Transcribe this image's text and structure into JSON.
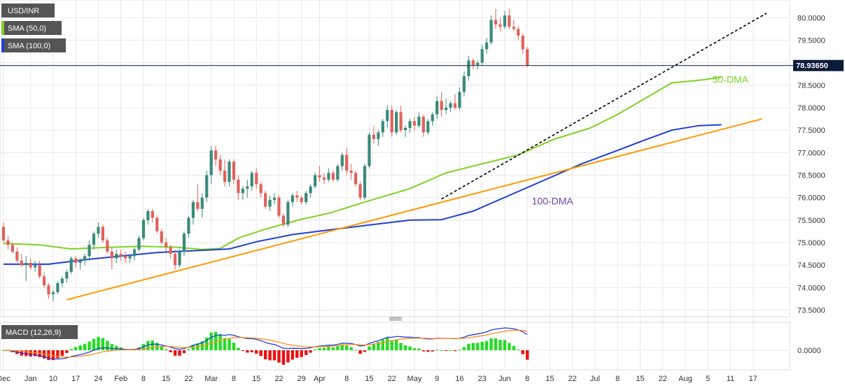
{
  "chart_data": [
    {
      "type": "candlestick",
      "title": "USD/INR",
      "legend": [
        {
          "name": "USD/INR",
          "color": "#555555",
          "swatch": "#555555"
        },
        {
          "name": "SMA (50,0)",
          "color": "#555555",
          "swatch": "#7ed321"
        },
        {
          "name": "SMA (100,0)",
          "color": "#555555",
          "swatch": "#1f3fd6"
        }
      ],
      "price_axis": {
        "ylim": [
          73.4,
          80.3
        ],
        "ticks": [
          "80.0000",
          "79.5000",
          "79.0000",
          "78.5000",
          "78.0000",
          "77.5000",
          "77.0000",
          "76.5000",
          "76.0000",
          "75.5000",
          "75.0000",
          "74.5000",
          "74.0000",
          "73.5000"
        ],
        "tick_values": [
          80.0,
          79.5,
          79.0,
          78.5,
          78.0,
          77.5,
          77.0,
          76.5,
          76.0,
          75.5,
          75.0,
          74.5,
          74.0,
          73.5
        ]
      },
      "current_price": {
        "value": 78.9365,
        "label": "78.93650"
      },
      "x_axis": {
        "tick_labels": [
          "Dec",
          "Jan",
          "10",
          "17",
          "24",
          "Feb",
          "8",
          "15",
          "22",
          "Mar",
          "8",
          "15",
          "22",
          "29",
          "Apr",
          "8",
          "15",
          "22",
          "May",
          "9",
          "16",
          "23",
          "Jun",
          "8",
          "15",
          "22",
          "Jul",
          "8",
          "15",
          "22",
          "Aug",
          "5",
          "11",
          "17"
        ],
        "tick_index": [
          0,
          6,
          11,
          16,
          21,
          26,
          31,
          36,
          41,
          46,
          51,
          56,
          61,
          66,
          70,
          76,
          81,
          86,
          91,
          96,
          101,
          106,
          111,
          116,
          121,
          126,
          131,
          136,
          141,
          146,
          151,
          156,
          161,
          166
        ]
      },
      "series": [
        {
          "name": "USD/INR",
          "candles": [
            [
              75.35,
              75.45,
              75.0,
              75.05
            ],
            [
              75.05,
              75.15,
              74.85,
              74.95
            ],
            [
              74.95,
              75.0,
              74.75,
              74.8
            ],
            [
              74.8,
              74.9,
              74.55,
              74.6
            ],
            [
              74.6,
              74.75,
              74.45,
              74.5
            ],
            [
              74.5,
              74.7,
              74.15,
              74.55
            ],
            [
              74.55,
              74.65,
              74.4,
              74.45
            ],
            [
              74.45,
              74.6,
              74.35,
              74.5
            ],
            [
              74.5,
              74.6,
              74.2,
              74.25
            ],
            [
              74.25,
              74.35,
              74.0,
              74.05
            ],
            [
              74.05,
              74.1,
              73.75,
              73.85
            ],
            [
              73.85,
              73.95,
              73.7,
              73.9
            ],
            [
              73.9,
              74.15,
              73.85,
              74.1
            ],
            [
              74.1,
              74.25,
              74.0,
              74.2
            ],
            [
              74.2,
              74.4,
              74.1,
              74.35
            ],
            [
              74.35,
              74.7,
              74.3,
              74.65
            ],
            [
              74.65,
              74.7,
              74.45,
              74.55
            ],
            [
              74.55,
              74.65,
              74.4,
              74.6
            ],
            [
              74.6,
              74.75,
              74.5,
              74.7
            ],
            [
              74.7,
              75.05,
              74.6,
              74.95
            ],
            [
              74.95,
              75.25,
              74.85,
              75.2
            ],
            [
              75.2,
              75.45,
              75.1,
              75.35
            ],
            [
              75.35,
              75.4,
              75.0,
              75.05
            ],
            [
              75.05,
              75.1,
              74.75,
              74.8
            ],
            [
              74.8,
              74.9,
              74.4,
              74.65
            ],
            [
              74.65,
              74.85,
              74.55,
              74.75
            ],
            [
              74.75,
              74.85,
              74.6,
              74.7
            ],
            [
              74.7,
              74.8,
              74.55,
              74.65
            ],
            [
              74.65,
              74.75,
              74.55,
              74.7
            ],
            [
              74.7,
              74.9,
              74.6,
              74.85
            ],
            [
              74.85,
              75.15,
              74.8,
              75.1
            ],
            [
              75.1,
              75.55,
              75.05,
              75.5
            ],
            [
              75.5,
              75.75,
              75.4,
              75.7
            ],
            [
              75.7,
              75.75,
              75.45,
              75.55
            ],
            [
              75.55,
              75.6,
              75.2,
              75.25
            ],
            [
              75.25,
              75.3,
              74.95,
              75.0
            ],
            [
              75.0,
              75.1,
              74.8,
              74.9
            ],
            [
              74.9,
              74.95,
              74.65,
              74.75
            ],
            [
              74.75,
              74.85,
              74.4,
              74.5
            ],
            [
              74.5,
              74.85,
              74.45,
              74.8
            ],
            [
              74.8,
              75.25,
              74.7,
              75.2
            ],
            [
              75.2,
              75.6,
              75.1,
              75.55
            ],
            [
              75.55,
              75.95,
              75.4,
              75.9
            ],
            [
              75.9,
              76.3,
              75.7,
              75.75
            ],
            [
              75.75,
              76.1,
              75.55,
              76.0
            ],
            [
              76.0,
              76.6,
              75.9,
              76.5
            ],
            [
              76.5,
              77.15,
              76.3,
              77.05
            ],
            [
              77.05,
              77.15,
              76.7,
              76.85
            ],
            [
              76.85,
              76.95,
              76.5,
              76.6
            ],
            [
              76.6,
              76.85,
              76.25,
              76.35
            ],
            [
              76.35,
              76.85,
              76.25,
              76.8
            ],
            [
              76.8,
              76.85,
              76.3,
              76.4
            ],
            [
              76.4,
              76.5,
              75.95,
              76.1
            ],
            [
              76.1,
              76.25,
              75.95,
              76.2
            ],
            [
              76.2,
              76.4,
              76.0,
              76.25
            ],
            [
              76.25,
              76.6,
              76.15,
              76.55
            ],
            [
              76.55,
              76.65,
              76.2,
              76.3
            ],
            [
              76.3,
              76.35,
              76.0,
              76.1
            ],
            [
              76.1,
              76.15,
              75.75,
              75.8
            ],
            [
              75.8,
              76.05,
              75.7,
              75.95
            ],
            [
              75.95,
              76.1,
              75.85,
              76.0
            ],
            [
              76.0,
              76.05,
              75.55,
              75.6
            ],
            [
              75.6,
              75.65,
              75.35,
              75.4
            ],
            [
              75.4,
              75.95,
              75.35,
              75.9
            ],
            [
              75.9,
              76.1,
              75.8,
              76.05
            ],
            [
              76.05,
              76.15,
              75.9,
              76.0
            ],
            [
              76.0,
              76.05,
              75.85,
              75.9
            ],
            [
              75.9,
              76.15,
              75.85,
              76.1
            ],
            [
              76.1,
              76.3,
              76.0,
              76.25
            ],
            [
              76.25,
              76.55,
              76.2,
              76.5
            ],
            [
              76.5,
              76.7,
              76.35,
              76.45
            ],
            [
              76.45,
              76.55,
              76.3,
              76.4
            ],
            [
              76.4,
              76.65,
              76.35,
              76.55
            ],
            [
              76.55,
              76.6,
              76.35,
              76.4
            ],
            [
              76.4,
              76.75,
              76.35,
              76.7
            ],
            [
              76.7,
              77.0,
              76.6,
              76.95
            ],
            [
              76.95,
              77.1,
              76.5,
              76.6
            ],
            [
              76.6,
              76.75,
              76.4,
              76.55
            ],
            [
              76.55,
              76.6,
              76.25,
              76.3
            ],
            [
              76.3,
              76.35,
              75.95,
              76.0
            ],
            [
              76.0,
              76.75,
              75.95,
              76.7
            ],
            [
              76.7,
              77.45,
              76.65,
              77.4
            ],
            [
              77.4,
              77.6,
              77.2,
              77.3
            ],
            [
              77.3,
              77.5,
              77.15,
              77.45
            ],
            [
              77.45,
              77.75,
              77.35,
              77.7
            ],
            [
              77.7,
              78.05,
              77.55,
              77.95
            ],
            [
              77.95,
              78.05,
              77.35,
              77.45
            ],
            [
              77.45,
              77.95,
              77.4,
              77.9
            ],
            [
              77.9,
              78.05,
              77.45,
              77.5
            ],
            [
              77.5,
              77.6,
              77.35,
              77.55
            ],
            [
              77.55,
              77.75,
              77.45,
              77.7
            ],
            [
              77.7,
              77.8,
              77.5,
              77.6
            ],
            [
              77.6,
              77.9,
              77.55,
              77.8
            ],
            [
              77.8,
              77.85,
              77.35,
              77.45
            ],
            [
              77.45,
              77.75,
              77.4,
              77.7
            ],
            [
              77.7,
              77.9,
              77.6,
              77.85
            ],
            [
              77.85,
              78.25,
              77.75,
              78.15
            ],
            [
              78.15,
              78.35,
              77.8,
              77.95
            ],
            [
              77.95,
              78.2,
              77.85,
              78.0
            ],
            [
              78.0,
              78.15,
              77.9,
              78.1
            ],
            [
              78.1,
              78.3,
              77.95,
              78.0
            ],
            [
              78.0,
              78.45,
              77.95,
              78.35
            ],
            [
              78.35,
              78.8,
              78.25,
              78.7
            ],
            [
              78.7,
              79.15,
              78.6,
              79.05
            ],
            [
              79.05,
              79.1,
              78.85,
              78.95
            ],
            [
              78.95,
              79.05,
              78.85,
              79.0
            ],
            [
              79.0,
              79.4,
              78.95,
              79.3
            ],
            [
              79.3,
              79.55,
              79.2,
              79.45
            ],
            [
              79.45,
              80.05,
              79.4,
              79.95
            ],
            [
              79.95,
              80.2,
              79.75,
              79.85
            ],
            [
              79.85,
              80.0,
              79.7,
              79.8
            ],
            [
              79.8,
              80.15,
              79.75,
              80.05
            ],
            [
              80.05,
              80.2,
              79.75,
              79.8
            ],
            [
              79.8,
              79.95,
              79.7,
              79.75
            ],
            [
              79.75,
              79.8,
              79.5,
              79.6
            ],
            [
              79.6,
              79.65,
              79.2,
              79.3
            ],
            [
              79.3,
              79.35,
              78.9,
              78.94
            ]
          ]
        },
        {
          "name": "SMA (50,0)",
          "color": "#7ed321",
          "label": "50-DMA"
        },
        {
          "name": "SMA (100,0)",
          "color": "#1f3fd6",
          "label": "100-DMA"
        },
        {
          "name": "support-trendline",
          "color": "#ff9900"
        },
        {
          "name": "broken-support-trendline",
          "color": "#000000",
          "style": "dashed"
        }
      ]
    },
    {
      "type": "histogram-line",
      "title": "MACD (12,26,9)",
      "y_axis": {
        "ticks": [
          "0.0000"
        ],
        "tick_values": [
          0
        ]
      },
      "series": [
        {
          "name": "MACD",
          "color": "#1f3fd6"
        },
        {
          "name": "Signal",
          "color": "#ff8c1a"
        },
        {
          "name": "Histogram",
          "positive_color": "#22dd22",
          "negative_color": "#ee1111"
        }
      ]
    }
  ],
  "colors": {
    "bull_candle": "#3a8a7a",
    "bear_candle": "#e0625a",
    "grid": "#e8e8e8",
    "price_tag_bg": "#0a1a3a",
    "legend_bg": "#555555",
    "sma50": "#7ed321",
    "sma100": "#1f3fd6",
    "trend_support": "#ff9900"
  },
  "icons": {
    "panel_divider": "drag-handle-icon"
  }
}
